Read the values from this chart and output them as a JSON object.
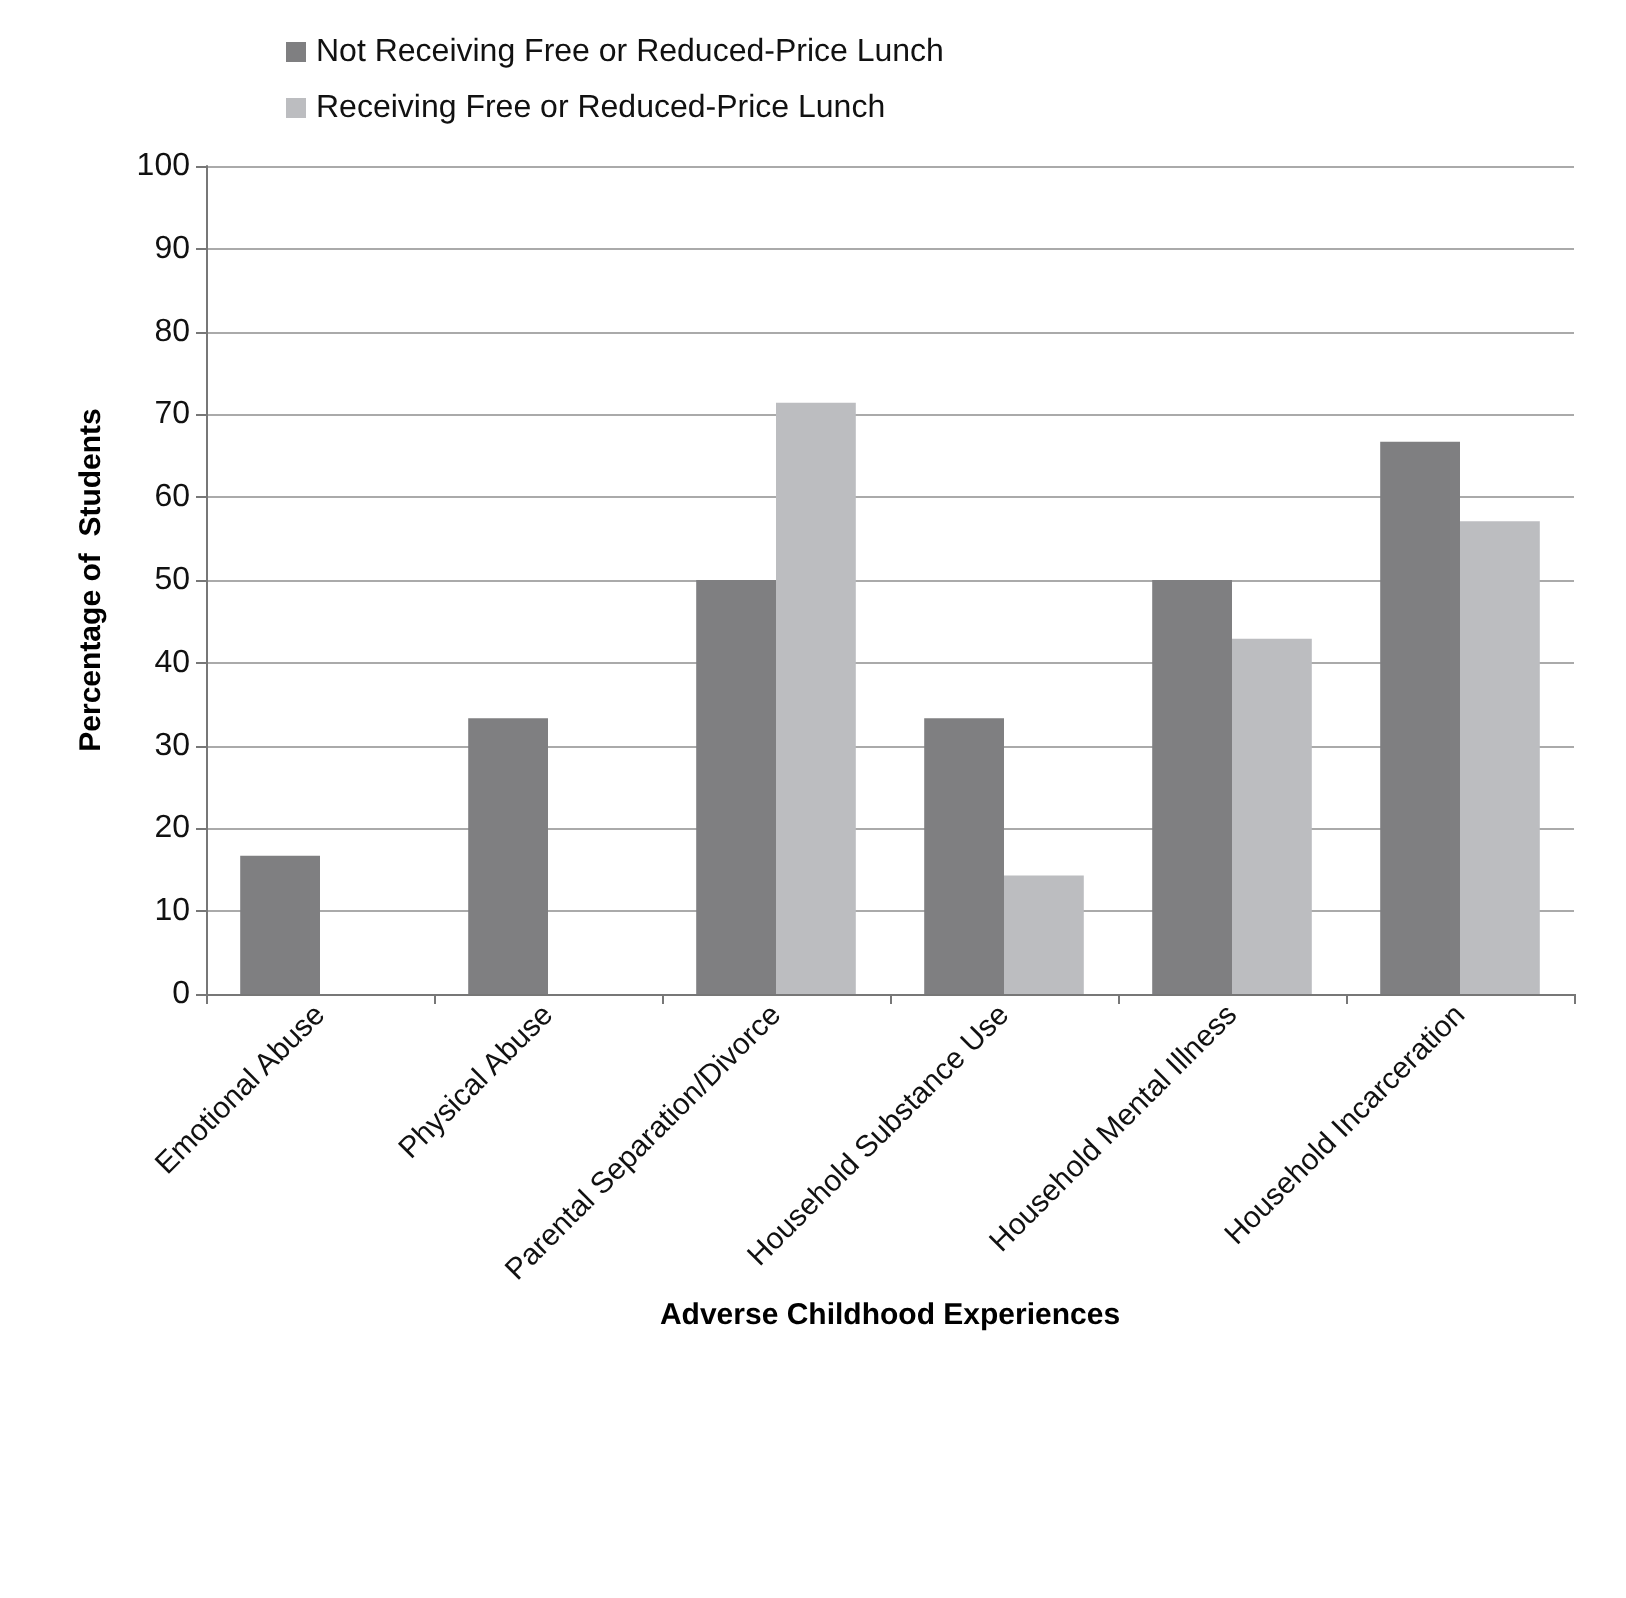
{
  "chart_data": {
    "type": "bar",
    "xlabel": "Adverse Childhood Experiences",
    "ylabel": "Percentage of  Students",
    "categories": [
      "Emotional Abuse",
      "Physical Abuse",
      "Parental Separation/Divorce",
      "Household Substance Use",
      "Household Mental Illness",
      "Household Incarceration"
    ],
    "series": [
      {
        "name": "Not Receiving Free or Reduced-Price Lunch",
        "color": "#7f7f81",
        "values": [
          16.7,
          33.3,
          50,
          33.3,
          50,
          66.7
        ]
      },
      {
        "name": "Receiving Free or Reduced-Price Lunch",
        "color": "#bcbdc0",
        "values": [
          0,
          0,
          71.4,
          14.3,
          42.9,
          57.1
        ]
      }
    ],
    "ylim": [
      0,
      100
    ],
    "yticks": [
      0,
      10,
      20,
      30,
      40,
      50,
      60,
      70,
      80,
      90,
      100
    ],
    "grid": "y",
    "legend": "top"
  }
}
